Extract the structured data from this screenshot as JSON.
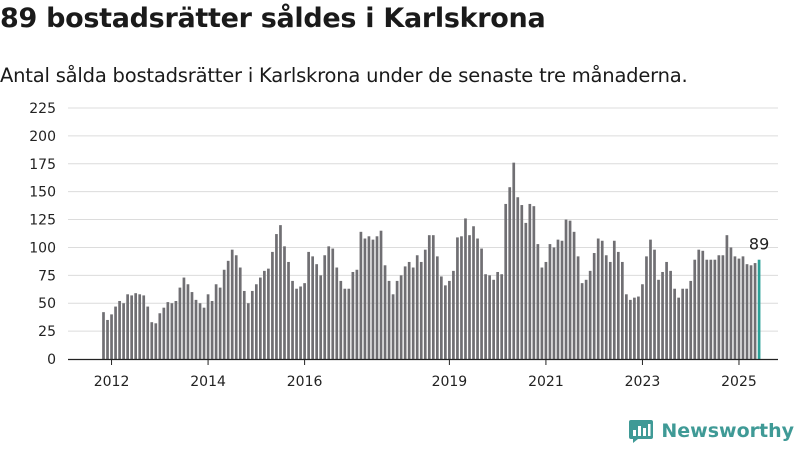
{
  "title": "89 bostadsrätter såldes i Karlskrona",
  "subtitle": "Antal sålda bostadsrätter i Karlskrona under de senaste tre månaderna.",
  "brand": "Newsworthy",
  "colors": {
    "bar": "#706f73",
    "highlight": "#2aa198",
    "brand": "#3f9a96",
    "grid": "#dcdcdc"
  },
  "chart_data": {
    "type": "bar",
    "xlabel": "",
    "ylabel": "",
    "ylim": [
      0,
      225
    ],
    "yticks": [
      0,
      25,
      50,
      75,
      100,
      125,
      150,
      175,
      200,
      225
    ],
    "grid": "horizontal",
    "legend": "none",
    "start": "2011-11",
    "x_tick_labels": [
      "2012",
      "2014",
      "2016",
      "2019",
      "2021",
      "2023",
      "2025"
    ],
    "x_tick_months": [
      "2012-01",
      "2014-01",
      "2016-01",
      "2019-01",
      "2021-01",
      "2023-01",
      "2025-01"
    ],
    "values": [
      42,
      35,
      40,
      47,
      52,
      50,
      58,
      57,
      59,
      58,
      57,
      47,
      33,
      32,
      41,
      46,
      51,
      50,
      52,
      64,
      73,
      67,
      60,
      53,
      50,
      46,
      58,
      52,
      67,
      64,
      80,
      88,
      98,
      93,
      82,
      61,
      50,
      61,
      67,
      73,
      79,
      81,
      96,
      112,
      120,
      101,
      87,
      70,
      63,
      65,
      68,
      96,
      92,
      85,
      75,
      93,
      101,
      99,
      82,
      70,
      63,
      63,
      78,
      80,
      114,
      108,
      110,
      107,
      110,
      115,
      84,
      70,
      58,
      70,
      75,
      83,
      87,
      82,
      93,
      87,
      98,
      111,
      111,
      92,
      74,
      66,
      70,
      79,
      109,
      110,
      126,
      111,
      119,
      108,
      99,
      76,
      75,
      71,
      78,
      76,
      139,
      154,
      176,
      145,
      138,
      122,
      139,
      137,
      103,
      82,
      87,
      103,
      100,
      107,
      106,
      125,
      124,
      114,
      92,
      68,
      71,
      79,
      95,
      108,
      106,
      93,
      87,
      106,
      96,
      87,
      58,
      53,
      55,
      56,
      67,
      92,
      107,
      98,
      71,
      78,
      87,
      79,
      63,
      55,
      63,
      63,
      70,
      89,
      98,
      97,
      89,
      89,
      89,
      93,
      93,
      111,
      100,
      92,
      90,
      92,
      85,
      84,
      86,
      89
    ],
    "highlight_last": 1,
    "value_label": "89"
  }
}
